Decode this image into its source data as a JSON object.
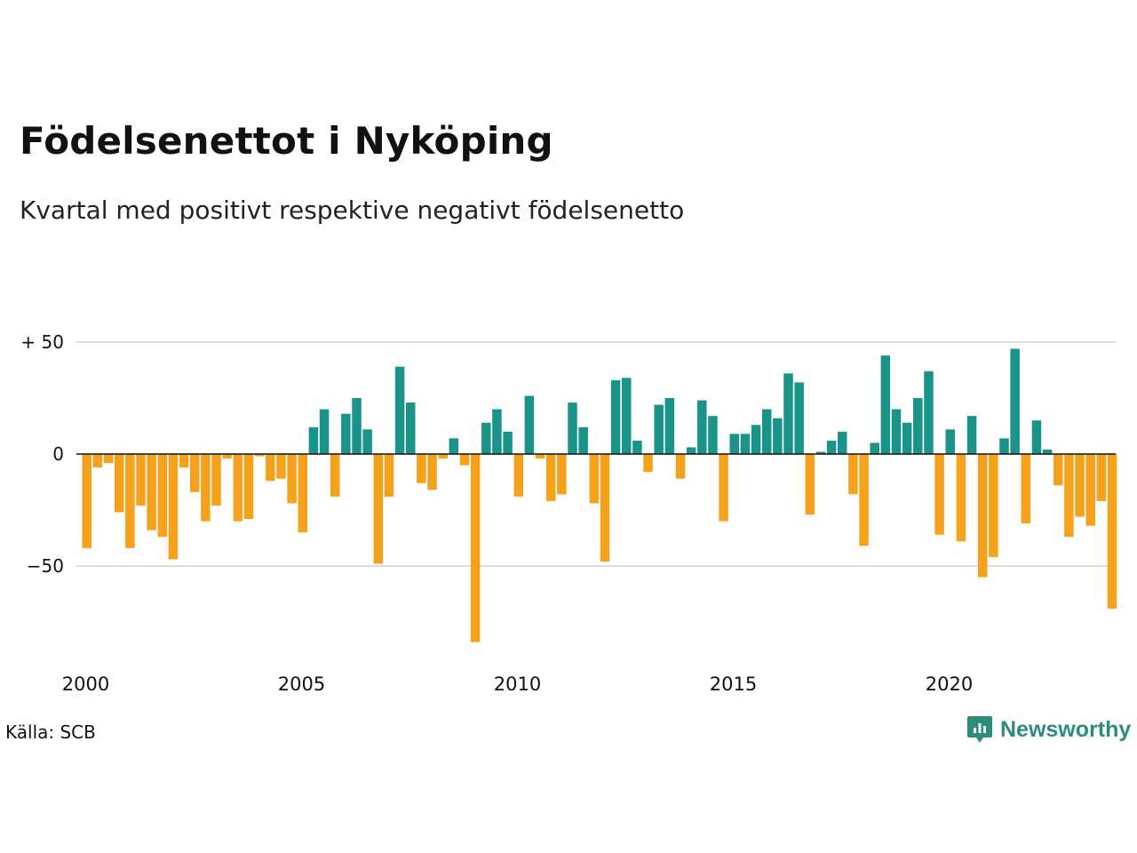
{
  "header": {
    "title": "Födelsenettot i Nyköping",
    "subtitle": "Kvartal med positivt respektive negativt födelsenetto"
  },
  "footer": {
    "source": "Källa: SCB",
    "brand": "Newsworthy",
    "brand_icon": "newsworthy-logo-icon"
  },
  "colors": {
    "positive": "#1a9488",
    "negative": "#f5a11c",
    "grid": "#dddddd",
    "brand": "#2c8d7d"
  },
  "chart_data": {
    "type": "bar",
    "x_start": "2000 Q1",
    "x_ticks": [
      "2000",
      "2005",
      "2010",
      "2015",
      "2020"
    ],
    "y_ticks": [
      "+ 50",
      "0",
      "−50"
    ],
    "y_tick_values": [
      50,
      0,
      -50
    ],
    "ylim": [
      -90,
      55
    ],
    "grid": true,
    "values": [
      -42,
      -6,
      -4,
      -26,
      -42,
      -23,
      -34,
      -37,
      -47,
      -6,
      -17,
      -30,
      -23,
      -2,
      -30,
      -29,
      -1,
      -12,
      -11,
      -22,
      -35,
      12,
      20,
      -19,
      18,
      25,
      11,
      -49,
      -19,
      39,
      23,
      -13,
      -16,
      -2,
      7,
      -5,
      -84,
      14,
      20,
      10,
      -19,
      26,
      -2,
      -21,
      -18,
      23,
      12,
      -22,
      -48,
      33,
      34,
      6,
      -8,
      22,
      25,
      -11,
      3,
      24,
      17,
      -30,
      9,
      9,
      13,
      20,
      16,
      36,
      32,
      -27,
      1,
      6,
      10,
      -18,
      -41,
      5,
      44,
      20,
      14,
      25,
      37,
      -36,
      11,
      -39,
      17,
      -55,
      -46,
      7,
      47,
      -31,
      15,
      2,
      -14,
      -37,
      -28,
      -32,
      -21,
      -69
    ]
  }
}
